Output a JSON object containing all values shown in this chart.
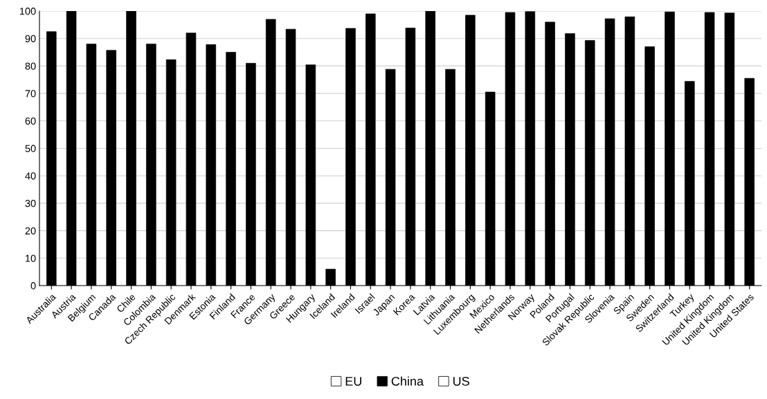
{
  "chart_data": {
    "type": "bar",
    "stacked": true,
    "categories": [
      "Australia",
      "Austria",
      "Belgium",
      "Canada",
      "Chile",
      "Colombia",
      "Czech Republic",
      "Denmark",
      "Estonia",
      "Finland",
      "France",
      "Germany",
      "Greece",
      "Hungary",
      "Iceland",
      "Ireland",
      "Israel",
      "Japan",
      "Korea",
      "Latvia",
      "Lithuania",
      "Luxembourg",
      "Mexico",
      "Netherlands",
      "Norway",
      "Poland",
      "Portugal",
      "Slovak Republic",
      "Slovenia",
      "Spain",
      "Sweden",
      "Switzerland",
      "Turkey",
      "United Kingdom",
      "United Kingdom",
      "United States"
    ],
    "series": [
      {
        "name": "EU",
        "color": "#ffffff",
        "values": [
          null,
          null,
          null,
          null,
          null,
          null,
          null,
          null,
          null,
          null,
          null,
          null,
          null,
          null,
          null,
          null,
          null,
          null,
          null,
          null,
          null,
          null,
          null,
          null,
          null,
          null,
          null,
          null,
          null,
          null,
          null,
          null,
          null,
          null,
          null,
          null
        ]
      },
      {
        "name": "China",
        "color": "#000000",
        "values": [
          92.5,
          100,
          88,
          85.7,
          100,
          88,
          82.3,
          92,
          87.8,
          85,
          81,
          97,
          93.4,
          80.4,
          6,
          93.7,
          99,
          78.8,
          93.8,
          100,
          78.8,
          98.5,
          70.5,
          99.5,
          99.8,
          96,
          91.8,
          89.3,
          97.2,
          97.9,
          87,
          99.7,
          74.4,
          99.5,
          99.3,
          75.5
        ]
      },
      {
        "name": "US",
        "color": "#ffffff",
        "values": [
          null,
          null,
          null,
          null,
          null,
          null,
          null,
          null,
          null,
          null,
          null,
          null,
          null,
          null,
          null,
          null,
          null,
          null,
          null,
          null,
          null,
          null,
          null,
          null,
          null,
          null,
          null,
          null,
          null,
          null,
          null,
          null,
          null,
          null,
          null,
          null
        ]
      }
    ],
    "ylim": [
      0,
      100
    ],
    "yticks": [
      0,
      10,
      20,
      30,
      40,
      50,
      60,
      70,
      80,
      90,
      100
    ],
    "grid": "y",
    "legend": "bottom"
  }
}
